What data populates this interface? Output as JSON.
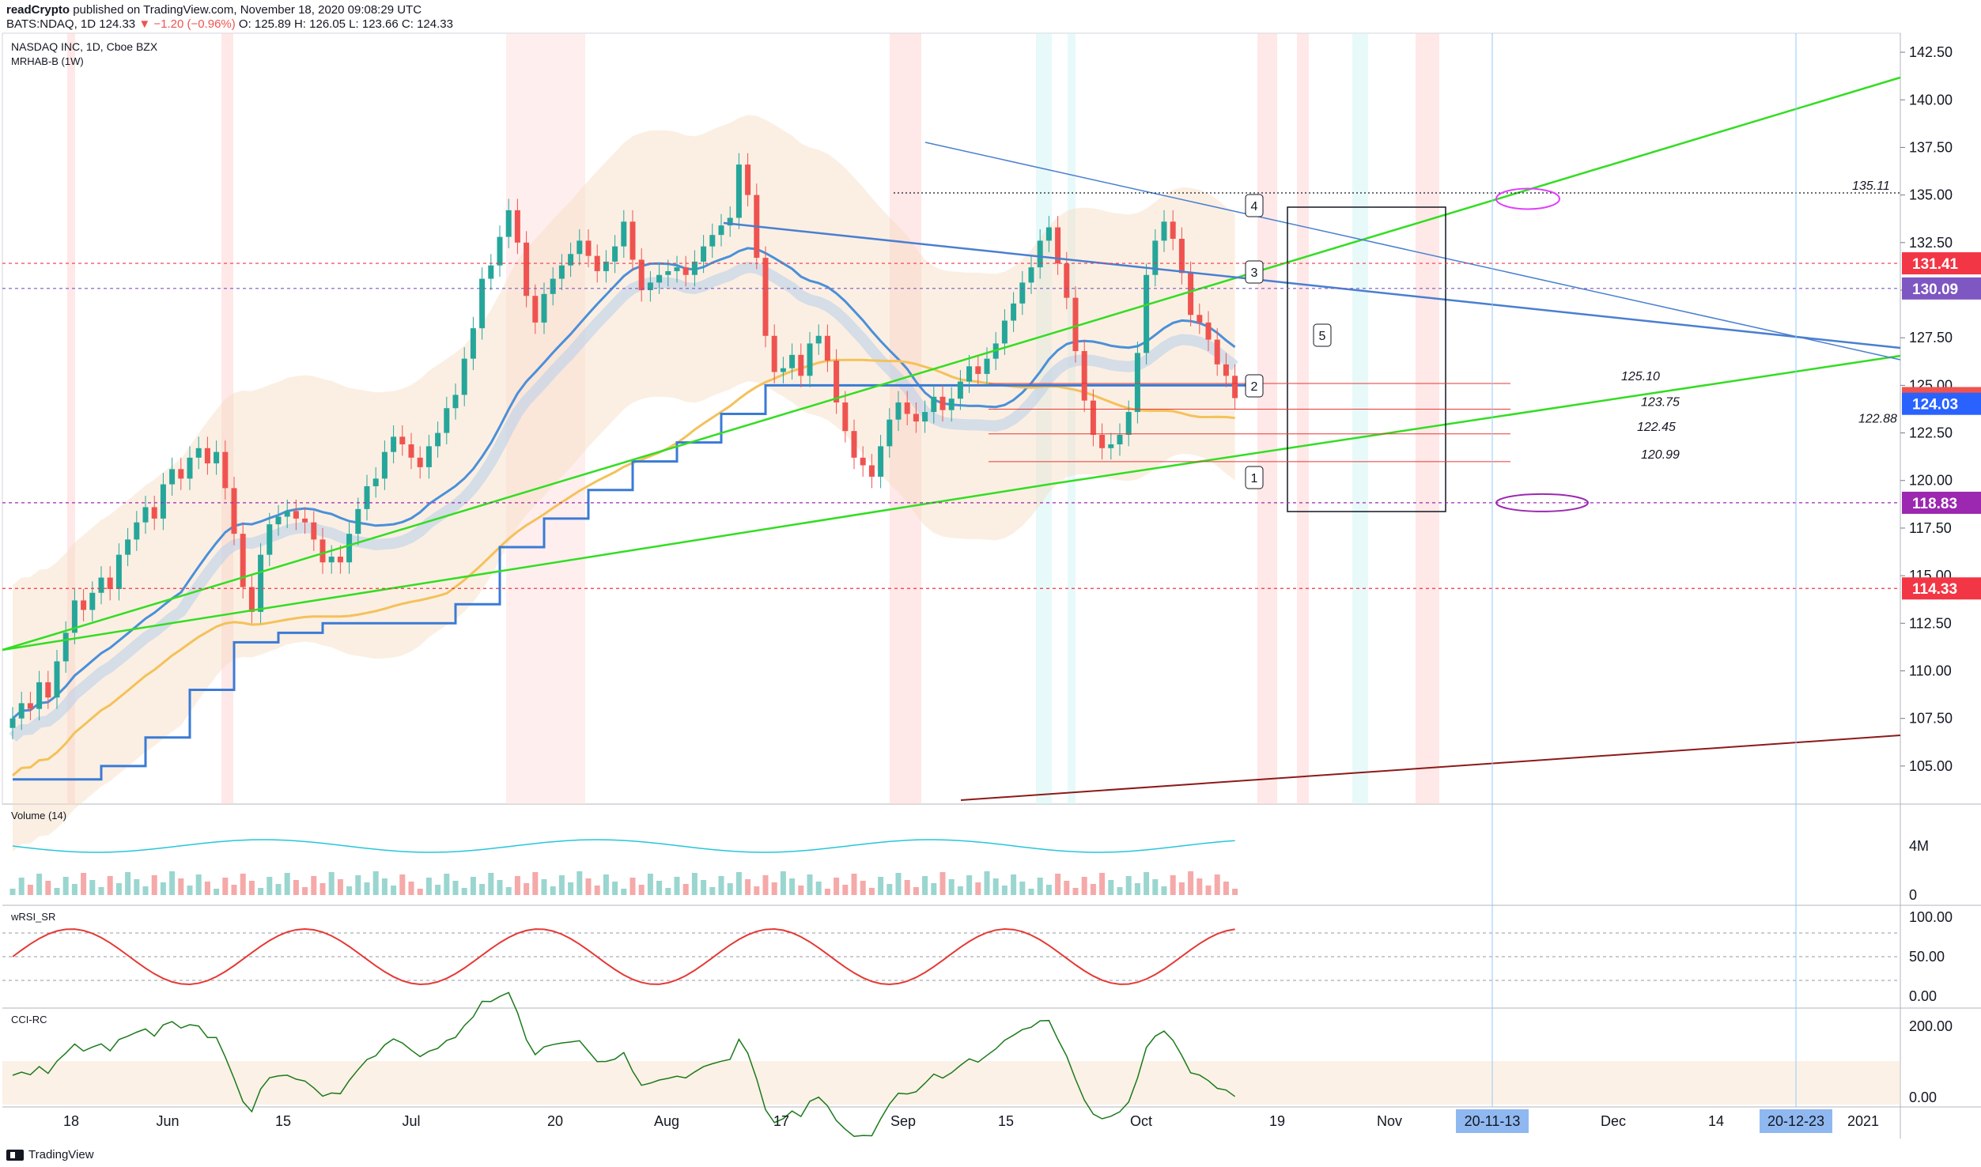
{
  "header": {
    "publisher": "readCrypto",
    "published_text": "published on TradingView.com, November 18, 2020 09:08:29 UTC",
    "symbol_line": "BATS:NDAQ, 1D",
    "last": "124.33",
    "change": "▼ −1.20 (−0.96%)",
    "ohlc": "O: 125.89  H: 126.05  L: 123.66  C: 124.33"
  },
  "legend": {
    "title": "NASDAQ INC, 1D, Cboe BZX",
    "indicator": "MRHAB-B (1W)",
    "volume": "Volume (14)",
    "wrsi": "wRSI_SR",
    "cci": "CCI-RC"
  },
  "footer": {
    "brand": "TradingView"
  },
  "colors": {
    "up": "#26a69a",
    "down": "#ef5350",
    "green_line": "#33dd22",
    "blue_line": "#4a7fd0",
    "maroon_line": "#8b1a1a",
    "purple": "#9c27b0"
  },
  "chart_data": [
    {
      "type": "candlestick",
      "title": "NASDAQ INC, 1D, Cboe BZX",
      "ylim": [
        103,
        143.5
      ],
      "y_ticks": [
        105.0,
        107.5,
        110.0,
        112.5,
        115.0,
        117.5,
        120.0,
        122.5,
        125.0,
        127.5,
        130.0,
        132.5,
        135.0,
        137.5,
        140.0,
        142.5
      ],
      "x_tick_labels": [
        "18",
        "Jun",
        "15",
        "Jul",
        "20",
        "Aug",
        "17",
        "Sep",
        "15",
        "Oct",
        "19",
        "Nov",
        "Dec",
        "14",
        "2021"
      ],
      "date_badges": [
        "20-11-13",
        "20-12-23"
      ],
      "price_badges": [
        {
          "value": "131.41",
          "color": "#f23645"
        },
        {
          "value": "130.09",
          "color": "#7e57c2"
        },
        {
          "value": "124.33",
          "color": "#ef5350"
        },
        {
          "value": "124.03",
          "color": "#2962ff"
        },
        {
          "value": "118.83",
          "color": "#9c27b0"
        },
        {
          "value": "114.33",
          "color": "#f23645"
        }
      ],
      "level_labels": [
        "135.11",
        "125.10",
        "123.75",
        "122.88",
        "122.45",
        "120.99"
      ],
      "wave_labels": [
        "1",
        "2",
        "3",
        "4",
        "5"
      ],
      "closes": [
        107.5,
        108.3,
        108.0,
        109.4,
        108.6,
        110.5,
        112.0,
        113.7,
        113.2,
        114.1,
        114.9,
        114.3,
        116.1,
        116.9,
        117.8,
        118.6,
        118.0,
        119.8,
        120.6,
        120.1,
        121.2,
        121.7,
        120.9,
        121.5,
        119.6,
        117.2,
        114.4,
        113.1,
        116.1,
        117.7,
        118.1,
        118.4,
        118.0,
        117.8,
        116.9,
        115.7,
        116.0,
        115.7,
        117.2,
        118.5,
        119.7,
        120.1,
        121.5,
        122.3,
        121.9,
        121.2,
        120.7,
        121.8,
        122.5,
        123.8,
        124.5,
        126.4,
        128.0,
        130.6,
        131.3,
        132.8,
        134.2,
        132.5,
        129.7,
        128.3,
        129.8,
        130.6,
        131.3,
        131.9,
        132.6,
        131.8,
        131.0,
        131.5,
        132.3,
        133.6,
        131.6,
        130.0,
        130.4,
        130.8,
        131.0,
        131.2,
        130.8,
        131.5,
        132.3,
        132.9,
        133.4,
        133.8,
        136.6,
        135.0,
        131.7,
        127.6,
        125.7,
        125.9,
        126.6,
        125.5,
        127.2,
        127.6,
        126.3,
        124.1,
        122.6,
        121.2,
        120.8,
        120.2,
        121.8,
        123.2,
        124.1,
        123.5,
        123.1,
        123.6,
        124.4,
        123.7,
        124.3,
        125.2,
        126.0,
        125.6,
        126.4,
        127.2,
        128.4,
        129.3,
        130.4,
        131.2,
        132.6,
        133.3,
        131.4,
        129.6,
        126.8,
        124.2,
        122.4,
        121.7,
        121.9,
        122.4,
        123.6,
        126.7,
        130.8,
        132.6,
        133.6,
        132.7,
        130.9,
        128.7,
        128.3,
        127.4,
        126.1,
        125.5,
        124.33
      ]
    },
    {
      "type": "volume",
      "title": "Volume (14)",
      "y_ticks": [
        "4M",
        "0"
      ]
    },
    {
      "type": "line",
      "title": "wRSI_SR",
      "ylim": [
        0,
        100
      ],
      "y_ticks": [
        "100.00",
        "50.00",
        "0.00"
      ]
    },
    {
      "type": "line",
      "title": "CCI-RC",
      "y_ticks": [
        "200.00",
        "0.00"
      ]
    }
  ]
}
